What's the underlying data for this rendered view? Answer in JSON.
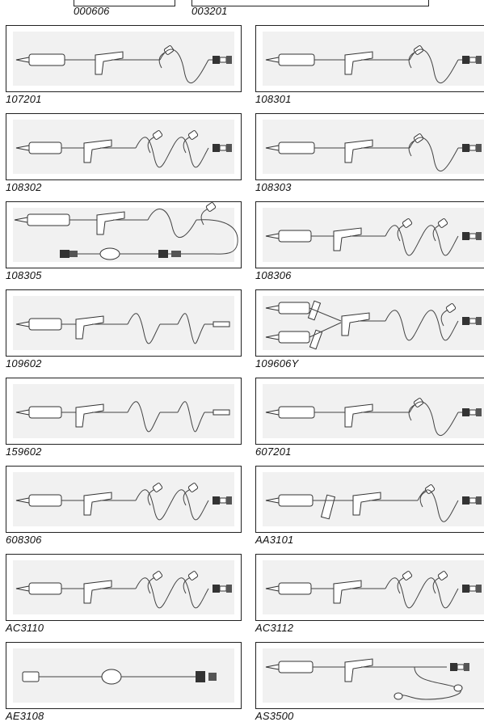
{
  "header_codes": {
    "left": "000606",
    "right": "003201"
  },
  "catalog": [
    {
      "code": "107201",
      "variant": "standard"
    },
    {
      "code": "108301",
      "variant": "standard"
    },
    {
      "code": "108302",
      "variant": "double"
    },
    {
      "code": "108303",
      "variant": "standard"
    },
    {
      "code": "108305",
      "variant": "loop"
    },
    {
      "code": "108306",
      "variant": "double"
    },
    {
      "code": "109602",
      "variant": "double_tip"
    },
    {
      "code": "109606Y",
      "variant": "y_set"
    },
    {
      "code": "159602",
      "variant": "double_tip"
    },
    {
      "code": "607201",
      "variant": "standard"
    },
    {
      "code": "608306",
      "variant": "double"
    },
    {
      "code": "AA3101",
      "variant": "clamp_side"
    },
    {
      "code": "AC3110",
      "variant": "double"
    },
    {
      "code": "AC3112",
      "variant": "double"
    },
    {
      "code": "AE3108",
      "variant": "extension"
    },
    {
      "code": "AS3500",
      "variant": "drop_loop"
    }
  ]
}
